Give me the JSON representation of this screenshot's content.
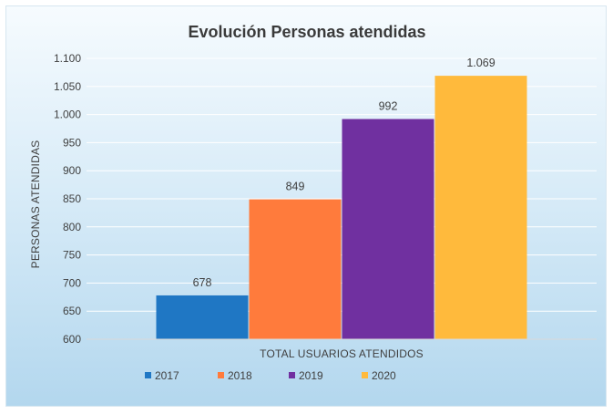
{
  "chart_data": {
    "type": "bar",
    "title": "Evolución Personas atendidas",
    "xlabel": "TOTAL USUARIOS ATENDIDOS",
    "ylabel": "PERSONAS ATENDIDAS",
    "categories": [
      "TOTAL USUARIOS ATENDIDOS"
    ],
    "ylim": [
      600,
      1100
    ],
    "ytick_step": 50,
    "yticks": [
      "600",
      "650",
      "700",
      "750",
      "800",
      "850",
      "900",
      "950",
      "1.000",
      "1.050",
      "1.100"
    ],
    "grid": true,
    "legend_position": "bottom",
    "series": [
      {
        "name": "2017",
        "values": [
          678
        ],
        "label": "678",
        "color": "#1f77c4"
      },
      {
        "name": "2018",
        "values": [
          849
        ],
        "label": "849",
        "color": "#ff7b3c"
      },
      {
        "name": "2019",
        "values": [
          992
        ],
        "label": "992",
        "color": "#7030a0"
      },
      {
        "name": "2020",
        "values": [
          1069
        ],
        "label": "1.069",
        "color": "#ffba3c"
      }
    ]
  }
}
